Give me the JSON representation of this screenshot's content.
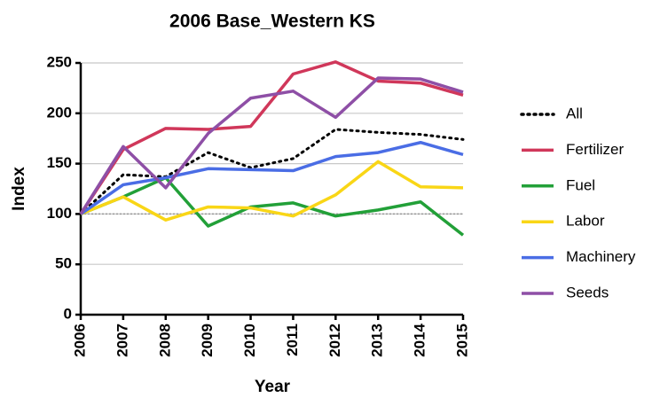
{
  "chart_data": {
    "type": "line",
    "title": "2006 Base_Western KS",
    "x_label": "Year",
    "y_label": "Index",
    "x": [
      2006,
      2007,
      2008,
      2009,
      2010,
      2011,
      2012,
      2013,
      2014,
      2015
    ],
    "xlim": [
      2006,
      2015
    ],
    "xticks": [
      2006,
      2007,
      2008,
      2009,
      2010,
      2011,
      2012,
      2013,
      2014,
      2015
    ],
    "ylim": [
      0,
      250
    ],
    "yticks": [
      0,
      50,
      100,
      150,
      200,
      250
    ],
    "grid": true,
    "reference_line": 100,
    "legend": "right",
    "series": [
      {
        "name": "All",
        "color": "#000000",
        "style": "dotted",
        "values": [
          100,
          139,
          137,
          161,
          146,
          155,
          184,
          181,
          179,
          174
        ]
      },
      {
        "name": "Fertilizer",
        "color": "#d0375a",
        "style": "solid",
        "values": [
          100,
          164,
          185,
          184,
          187,
          239,
          251,
          232,
          230,
          218
        ]
      },
      {
        "name": "Fuel",
        "color": "#22a038",
        "style": "solid",
        "values": [
          100,
          117,
          136,
          88,
          107,
          111,
          98,
          104,
          112,
          79
        ]
      },
      {
        "name": "Labor",
        "color": "#f9d616",
        "style": "solid",
        "values": [
          100,
          117,
          94,
          107,
          106,
          98,
          119,
          152,
          127,
          126
        ]
      },
      {
        "name": "Machinery",
        "color": "#4a6de5",
        "style": "solid",
        "values": [
          100,
          129,
          136,
          145,
          144,
          143,
          157,
          161,
          171,
          159
        ]
      },
      {
        "name": "Seeds",
        "color": "#8e4fa6",
        "style": "solid",
        "values": [
          100,
          167,
          126,
          180,
          215,
          222,
          196,
          235,
          234,
          221
        ]
      }
    ]
  }
}
